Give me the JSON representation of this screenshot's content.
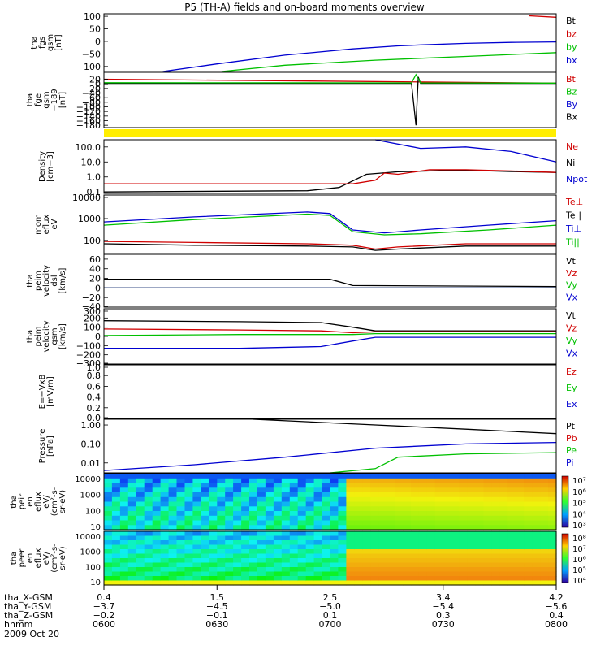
{
  "title": "P5 (TH-A) fields and on-board moments overview",
  "colors": {
    "black": "#000000",
    "red": "#d00000",
    "green": "#00c000",
    "blue": "#0000d0",
    "yellow": "#ffee00"
  },
  "chart_data": [
    {
      "type": "line",
      "id": "fgs",
      "ylabel": [
        "tha",
        "fgs",
        "gsm",
        "[nT]"
      ],
      "ylim": [
        -120,
        110
      ],
      "ticks": [
        "100",
        "50",
        "0",
        "−50",
        "−100"
      ],
      "tick_values": [
        100,
        50,
        0,
        -50,
        -100
      ],
      "legend": [
        {
          "name": "Bt",
          "color": "#000000"
        },
        {
          "name": "bz",
          "color": "#d00000"
        },
        {
          "name": "by",
          "color": "#00c000"
        },
        {
          "name": "bx",
          "color": "#0000d0"
        }
      ],
      "series": [
        {
          "name": "bz",
          "color": "#d00000",
          "x": [
            0.94,
            1.0
          ],
          "y": [
            102,
            96
          ]
        },
        {
          "name": "by",
          "color": "#00c000",
          "x": [
            0.26,
            0.4,
            0.6,
            0.8,
            1.0
          ],
          "y": [
            -120,
            -95,
            -75,
            -60,
            -45
          ]
        },
        {
          "name": "bx",
          "color": "#0000d0",
          "x": [
            0.13,
            0.25,
            0.4,
            0.55,
            0.65,
            0.7,
            0.8,
            0.9,
            1.0
          ],
          "y": [
            -120,
            -90,
            -55,
            -30,
            -18,
            -14,
            -8,
            -4,
            -2
          ]
        }
      ]
    },
    {
      "type": "line",
      "id": "fge",
      "ylabel": [
        "tha",
        "fge",
        "gsm",
        "−189",
        "[nT]"
      ],
      "ylim": [
        -190,
        50
      ],
      "ticks": [
        "20",
        "0",
        "−20",
        "−40",
        "−60",
        "−80",
        "−100",
        "−120",
        "−140",
        "−160",
        "−180"
      ],
      "tick_values": [
        20,
        0,
        -20,
        -40,
        -60,
        -80,
        -100,
        -120,
        -140,
        -160,
        -180
      ],
      "legend": [
        {
          "name": "Bt",
          "color": "#d00000"
        },
        {
          "name": "Bz",
          "color": "#00c000"
        },
        {
          "name": "By",
          "color": "#0000d0"
        },
        {
          "name": "Bx",
          "color": "#000000"
        }
      ],
      "series": [
        {
          "name": "Bt",
          "color": "#d00000",
          "x": [
            0,
            1
          ],
          "y": [
            20,
            3
          ]
        },
        {
          "name": "Bx",
          "color": "#000000",
          "x": [
            0,
            0.68,
            0.69,
            0.695,
            0.7,
            1.0
          ],
          "y": [
            2,
            2,
            -180,
            30,
            2,
            2
          ]
        },
        {
          "name": "By",
          "color": "#00c000",
          "x": [
            0,
            0.68,
            0.69,
            0.7,
            1.0
          ],
          "y": [
            5,
            4,
            40,
            4,
            3
          ]
        }
      ]
    },
    {
      "type": "line",
      "id": "density",
      "ylabel": [
        "Density",
        "[cm−3]"
      ],
      "log": true,
      "ylim": [
        0.08,
        300
      ],
      "ticks": [
        "100.0",
        "10.0",
        "1.0",
        "0.1"
      ],
      "tick_values": [
        100,
        10,
        1,
        0.1
      ],
      "legend": [
        {
          "name": "Ne",
          "color": "#d00000"
        },
        {
          "name": "Ni",
          "color": "#000000"
        },
        {
          "name": "Npot",
          "color": "#0000d0"
        }
      ],
      "series": [
        {
          "name": "Ni",
          "color": "#000000",
          "x": [
            0,
            0.45,
            0.52,
            0.58,
            0.65,
            0.72,
            0.8,
            0.9,
            1.0
          ],
          "y": [
            0.1,
            0.12,
            0.2,
            1.5,
            2.2,
            2.5,
            2.8,
            2.3,
            2.0
          ]
        },
        {
          "name": "Ne",
          "color": "#d00000",
          "x": [
            0,
            0.55,
            0.6,
            0.62,
            0.65,
            0.72,
            0.8,
            0.9,
            1.0
          ],
          "y": [
            0.35,
            0.35,
            0.6,
            1.8,
            1.5,
            3,
            3,
            2.5,
            2
          ]
        },
        {
          "name": "Npot",
          "color": "#0000d0",
          "x": [
            0.6,
            0.7,
            0.8,
            0.9,
            1.0
          ],
          "y": [
            300,
            80,
            100,
            50,
            10
          ]
        }
      ]
    },
    {
      "type": "line",
      "id": "mom_temp",
      "ylabel": [
        "mom",
        "eflux",
        "eV"
      ],
      "log": true,
      "ylim": [
        25,
        12000
      ],
      "ticks": [
        "10000",
        "1000",
        "100"
      ],
      "tick_values": [
        10000,
        1000,
        100
      ],
      "legend": [
        {
          "name": "Te⊥",
          "color": "#d00000"
        },
        {
          "name": "Te||",
          "color": "#000000"
        },
        {
          "name": "Ti⊥",
          "color": "#0000d0"
        },
        {
          "name": "Ti||",
          "color": "#00c000"
        }
      ],
      "series": [
        {
          "name": "Ti⊥",
          "color": "#0000d0",
          "x": [
            0,
            0.2,
            0.45,
            0.5,
            0.55,
            0.62,
            0.7,
            0.85,
            1.0
          ],
          "y": [
            700,
            1200,
            2000,
            1700,
            300,
            220,
            300,
            500,
            800
          ]
        },
        {
          "name": "Ti||",
          "color": "#00c000",
          "x": [
            0,
            0.2,
            0.45,
            0.5,
            0.55,
            0.62,
            0.7,
            0.85,
            1.0
          ],
          "y": [
            500,
            900,
            1600,
            1400,
            250,
            180,
            200,
            300,
            500
          ]
        },
        {
          "name": "Te⊥",
          "color": "#d00000",
          "x": [
            0,
            0.2,
            0.45,
            0.55,
            0.6,
            0.65,
            0.8,
            1.0
          ],
          "y": [
            90,
            80,
            70,
            60,
            40,
            50,
            70,
            70
          ]
        },
        {
          "name": "Te||",
          "color": "#000000",
          "x": [
            0,
            0.2,
            0.45,
            0.55,
            0.6,
            0.65,
            0.8,
            1.0
          ],
          "y": [
            70,
            60,
            55,
            50,
            35,
            40,
            55,
            55
          ]
        }
      ]
    },
    {
      "type": "line",
      "id": "vel_dsl",
      "ylabel": [
        "tha",
        "peim",
        "velocity",
        "dsl",
        "[km/s]"
      ],
      "ylim": [
        -40,
        70
      ],
      "ticks": [
        "60",
        "40",
        "20",
        "0",
        "−20",
        "−40"
      ],
      "tick_values": [
        60,
        40,
        20,
        0,
        -20,
        -40
      ],
      "legend": [
        {
          "name": "Vt",
          "color": "#000000"
        },
        {
          "name": "Vz",
          "color": "#d00000"
        },
        {
          "name": "Vy",
          "color": "#00c000"
        },
        {
          "name": "Vx",
          "color": "#0000d0"
        }
      ],
      "series": [
        {
          "name": "Vt",
          "color": "#000000",
          "x": [
            0,
            0.5,
            0.55,
            1.0
          ],
          "y": [
            18,
            18,
            5,
            3
          ]
        },
        {
          "name": "Vz",
          "color": "#d00000",
          "x": [
            0,
            0.5,
            0.55,
            1.0
          ],
          "y": [
            0,
            0,
            0,
            0
          ]
        },
        {
          "name": "Vy",
          "color": "#00c000",
          "x": [
            0,
            0.5,
            0.55,
            1.0
          ],
          "y": [
            0,
            0,
            0,
            0
          ]
        },
        {
          "name": "Vx",
          "color": "#0000d0",
          "x": [
            0,
            0.5,
            0.55,
            1.0
          ],
          "y": [
            0,
            0,
            0,
            0
          ]
        }
      ]
    },
    {
      "type": "line",
      "id": "vel_gsm",
      "ylabel": [
        "tha",
        "peim",
        "velocity",
        "gsm",
        "[km/s]"
      ],
      "ylim": [
        -300,
        300
      ],
      "ticks": [
        "300",
        "200",
        "100",
        "0",
        "−100",
        "−200",
        "−300"
      ],
      "tick_values": [
        300,
        200,
        100,
        0,
        -100,
        -200,
        -300
      ],
      "legend": [
        {
          "name": "Vt",
          "color": "#000000"
        },
        {
          "name": "Vz",
          "color": "#d00000"
        },
        {
          "name": "Vy",
          "color": "#00c000"
        },
        {
          "name": "Vx",
          "color": "#0000d0"
        }
      ],
      "series": [
        {
          "name": "Vt",
          "color": "#000000",
          "x": [
            0,
            0.3,
            0.48,
            0.55,
            0.6,
            1.0
          ],
          "y": [
            170,
            160,
            150,
            100,
            60,
            60
          ]
        },
        {
          "name": "Vz",
          "color": "#d00000",
          "x": [
            0,
            0.3,
            0.48,
            0.55,
            0.6,
            1.0
          ],
          "y": [
            80,
            70,
            60,
            40,
            50,
            50
          ]
        },
        {
          "name": "Vy",
          "color": "#00c000",
          "x": [
            0,
            0.3,
            0.48,
            0.55,
            0.6,
            1.0
          ],
          "y": [
            10,
            20,
            20,
            20,
            30,
            30
          ]
        },
        {
          "name": "Vx",
          "color": "#0000d0",
          "x": [
            0,
            0.3,
            0.48,
            0.55,
            0.6,
            1.0
          ],
          "y": [
            -130,
            -130,
            -110,
            -50,
            -10,
            -10
          ]
        }
      ]
    },
    {
      "type": "line",
      "id": "efield",
      "ylabel": [
        "E=−VxB",
        "[mV/m]"
      ],
      "ylim": [
        0,
        1
      ],
      "ticks": [
        "1.0",
        "0.8",
        "0.6",
        "0.4",
        "0.2",
        "0.0"
      ],
      "tick_values": [
        1,
        0.8,
        0.6,
        0.4,
        0.2,
        0
      ],
      "legend": [
        {
          "name": "Ez",
          "color": "#d00000"
        },
        {
          "name": "Ey",
          "color": "#00c000"
        },
        {
          "name": "Ex",
          "color": "#0000d0"
        }
      ],
      "series": []
    },
    {
      "type": "line",
      "id": "pressure",
      "ylabel": [
        "Pressure",
        "[nPa]"
      ],
      "log": true,
      "ylim": [
        0.003,
        2
      ],
      "ticks": [
        "1.00",
        "0.10",
        "0.01"
      ],
      "tick_values": [
        1,
        0.1,
        0.01
      ],
      "legend": [
        {
          "name": "Pt",
          "color": "#000000"
        },
        {
          "name": "Pb",
          "color": "#d00000"
        },
        {
          "name": "Pe",
          "color": "#00c000"
        },
        {
          "name": "Pi",
          "color": "#0000d0"
        }
      ],
      "series": [
        {
          "name": "Pt",
          "color": "#000000",
          "x": [
            0.33,
            0.6,
            0.8,
            1.0
          ],
          "y": [
            2,
            1,
            0.6,
            0.35
          ]
        },
        {
          "name": "Pi",
          "color": "#0000d0",
          "x": [
            0,
            0.2,
            0.4,
            0.6,
            0.8,
            1.0
          ],
          "y": [
            0.004,
            0.008,
            0.02,
            0.06,
            0.1,
            0.12
          ]
        },
        {
          "name": "Pe",
          "color": "#00c000",
          "x": [
            0.5,
            0.6,
            0.65,
            0.8,
            1.0
          ],
          "y": [
            0.003,
            0.005,
            0.02,
            0.03,
            0.035
          ]
        }
      ]
    },
    {
      "type": "heatmap",
      "id": "peir",
      "ylabel": [
        "tha",
        "peir",
        "en",
        "eflux",
        "eV/",
        "(cm²-s-",
        "sr-eV)"
      ],
      "ticks": [
        "10000",
        "1000",
        "100",
        "10"
      ],
      "cbar_ticks": [
        "10⁷",
        "10⁶",
        "10⁵",
        "10⁴",
        "10³"
      ]
    },
    {
      "type": "heatmap",
      "id": "peer",
      "ylabel": [
        "tha",
        "peer",
        "en",
        "eflux",
        "eV/",
        "(cm²-s-",
        "sr-eV)"
      ],
      "ticks": [
        "10000",
        "1000",
        "100",
        "10"
      ],
      "cbar_ticks": [
        "10⁸",
        "10⁷",
        "10⁶",
        "10⁵",
        "10⁴"
      ]
    }
  ],
  "xaxis": {
    "rows": [
      {
        "label": "tha_X-GSM",
        "values": [
          "0.4",
          "1.5",
          "2.5",
          "3.4",
          "4.2"
        ]
      },
      {
        "label": "tha_Y-GSM",
        "values": [
          "−3.7",
          "−4.5",
          "−5.0",
          "−5.4",
          "−5.6"
        ]
      },
      {
        "label": "tha_Z-GSM",
        "values": [
          "−0.2",
          "−0.1",
          "0.1",
          "0.3",
          "0.4"
        ]
      },
      {
        "label": "hhmm",
        "values": [
          "0600",
          "0630",
          "0700",
          "0730",
          "0800"
        ]
      }
    ],
    "date": "2009 Oct 20"
  }
}
